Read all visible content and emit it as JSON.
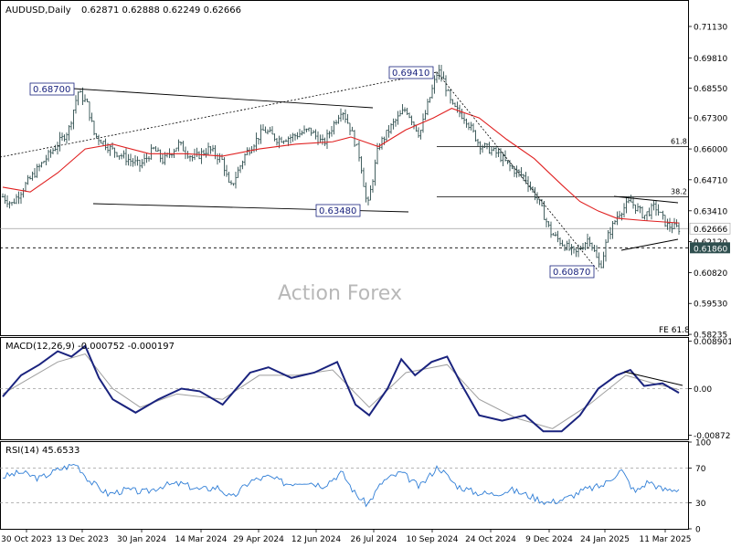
{
  "header": {
    "symbol": "AUDUSD,Daily",
    "ohlc": "0.62871 0.62888 0.62249 0.62666"
  },
  "watermark": "Action Forex",
  "colors": {
    "bars": "#2f4f4f",
    "ma": "#e02020",
    "macd": "#1a237e",
    "macd_signal": "#9e9e9e",
    "rsi": "#2e7dd6",
    "trendline": "#000000",
    "label_border": "#1a237e",
    "current_price_bg": "#2f4f4f"
  },
  "chart_data": [
    {
      "type": "ohlc",
      "panel": "price",
      "ylim": [
        0.582,
        0.722
      ],
      "y_ticks": [
        "0.71130",
        "0.69810",
        "0.68550",
        "0.67300",
        "0.66000",
        "0.64710",
        "0.63410",
        "0.62120",
        "0.60820",
        "0.59530",
        "0.58235"
      ],
      "x_ticks": [
        "30 Oct 2023",
        "13 Dec 2023",
        "30 Jan 2024",
        "14 Mar 2024",
        "29 Apr 2024",
        "12 Jun 2024",
        "26 Jul 2024",
        "10 Sep 2024",
        "24 Oct 2024",
        "9 Dec 2024",
        "24 Jan 2025",
        "11 Mar 2025"
      ],
      "path_points": [
        [
          0,
          0.64
        ],
        [
          10,
          0.637
        ],
        [
          25,
          0.645
        ],
        [
          45,
          0.655
        ],
        [
          60,
          0.662
        ],
        [
          72,
          0.668
        ],
        [
          82,
          0.684
        ],
        [
          92,
          0.679
        ],
        [
          100,
          0.666
        ],
        [
          118,
          0.66
        ],
        [
          135,
          0.656
        ],
        [
          150,
          0.653
        ],
        [
          165,
          0.66
        ],
        [
          175,
          0.655
        ],
        [
          192,
          0.662
        ],
        [
          208,
          0.656
        ],
        [
          225,
          0.66
        ],
        [
          240,
          0.655
        ],
        [
          248,
          0.643
        ],
        [
          265,
          0.658
        ],
        [
          285,
          0.668
        ],
        [
          300,
          0.664
        ],
        [
          315,
          0.665
        ],
        [
          335,
          0.668
        ],
        [
          350,
          0.662
        ],
        [
          370,
          0.677
        ],
        [
          380,
          0.668
        ],
        [
          390,
          0.656
        ],
        [
          398,
          0.635
        ],
        [
          410,
          0.661
        ],
        [
          425,
          0.67
        ],
        [
          440,
          0.677
        ],
        [
          455,
          0.666
        ],
        [
          465,
          0.68
        ],
        [
          475,
          0.693
        ],
        [
          482,
          0.688
        ],
        [
          490,
          0.678
        ],
        [
          505,
          0.673
        ],
        [
          520,
          0.662
        ],
        [
          540,
          0.658
        ],
        [
          555,
          0.652
        ],
        [
          570,
          0.648
        ],
        [
          585,
          0.638
        ],
        [
          598,
          0.625
        ],
        [
          612,
          0.62
        ],
        [
          625,
          0.616
        ],
        [
          640,
          0.623
        ],
        [
          652,
          0.61
        ],
        [
          660,
          0.623
        ],
        [
          672,
          0.633
        ],
        [
          685,
          0.638
        ],
        [
          700,
          0.632
        ],
        [
          712,
          0.636
        ],
        [
          725,
          0.628
        ],
        [
          738,
          0.6267
        ]
      ],
      "ma_points": [
        [
          0,
          0.644
        ],
        [
          30,
          0.642
        ],
        [
          60,
          0.65
        ],
        [
          90,
          0.66
        ],
        [
          120,
          0.662
        ],
        [
          160,
          0.658
        ],
        [
          200,
          0.658
        ],
        [
          240,
          0.657
        ],
        [
          280,
          0.66
        ],
        [
          320,
          0.662
        ],
        [
          360,
          0.663
        ],
        [
          380,
          0.665
        ],
        [
          410,
          0.661
        ],
        [
          440,
          0.668
        ],
        [
          470,
          0.673
        ],
        [
          490,
          0.677
        ],
        [
          520,
          0.673
        ],
        [
          550,
          0.664
        ],
        [
          580,
          0.656
        ],
        [
          610,
          0.645
        ],
        [
          630,
          0.638
        ],
        [
          650,
          0.634
        ],
        [
          670,
          0.631
        ],
        [
          700,
          0.63
        ],
        [
          738,
          0.629
        ]
      ],
      "annotations": {
        "high_2023": "0.68700",
        "low_2024": "0.63480",
        "high_2024": "0.69410",
        "low_2025": "0.60870",
        "fib_61_8": "61.8",
        "fib_38_2": "38.2",
        "fe_61_8": "FE 61.8",
        "support_price": "0.61860",
        "current_price": "0.62666"
      },
      "levels": {
        "fib_61_8": 0.661,
        "fib_38_2": 0.64,
        "support": 0.6186,
        "current": 0.62666
      }
    },
    {
      "type": "line",
      "panel": "macd",
      "title": "MACD(12,26,9) -0.000752 -0.000197",
      "y_ticks": [
        "0.008901",
        "0.00",
        "-0.008729"
      ],
      "macd_points": [
        [
          0,
          -0.0015
        ],
        [
          20,
          0.0025
        ],
        [
          40,
          0.0045
        ],
        [
          60,
          0.007
        ],
        [
          75,
          0.006
        ],
        [
          90,
          0.008
        ],
        [
          105,
          0.002
        ],
        [
          120,
          -0.002
        ],
        [
          145,
          -0.0045
        ],
        [
          170,
          -0.002
        ],
        [
          195,
          0.0
        ],
        [
          215,
          -0.0005
        ],
        [
          240,
          -0.003
        ],
        [
          270,
          0.003
        ],
        [
          290,
          0.004
        ],
        [
          315,
          0.002
        ],
        [
          340,
          0.003
        ],
        [
          365,
          0.005
        ],
        [
          385,
          -0.003
        ],
        [
          400,
          -0.005
        ],
        [
          420,
          0.0
        ],
        [
          435,
          0.0055
        ],
        [
          450,
          0.0025
        ],
        [
          468,
          0.005
        ],
        [
          485,
          0.006
        ],
        [
          500,
          0.001
        ],
        [
          520,
          -0.005
        ],
        [
          545,
          -0.006
        ],
        [
          570,
          -0.005
        ],
        [
          590,
          -0.008
        ],
        [
          610,
          -0.008
        ],
        [
          630,
          -0.005
        ],
        [
          650,
          0.0
        ],
        [
          670,
          0.0025
        ],
        [
          685,
          0.0035
        ],
        [
          700,
          0.0005
        ],
        [
          720,
          0.001
        ],
        [
          738,
          -0.0008
        ]
      ],
      "signal_points": [
        [
          0,
          -0.001
        ],
        [
          30,
          0.002
        ],
        [
          60,
          0.005
        ],
        [
          90,
          0.0065
        ],
        [
          120,
          0.0
        ],
        [
          150,
          -0.0035
        ],
        [
          190,
          -0.001
        ],
        [
          240,
          -0.002
        ],
        [
          280,
          0.0025
        ],
        [
          320,
          0.0025
        ],
        [
          360,
          0.0035
        ],
        [
          400,
          -0.0035
        ],
        [
          440,
          0.003
        ],
        [
          485,
          0.0045
        ],
        [
          520,
          -0.002
        ],
        [
          560,
          -0.0055
        ],
        [
          600,
          -0.0075
        ],
        [
          640,
          -0.003
        ],
        [
          680,
          0.0025
        ],
        [
          710,
          0.001
        ],
        [
          738,
          -0.0002
        ]
      ],
      "ylim": [
        -0.0095,
        0.0095
      ]
    },
    {
      "type": "line",
      "panel": "rsi",
      "title": "RSI(14) 45.6533",
      "y_ticks": [
        "100",
        "70",
        "30",
        "0"
      ],
      "ylim": [
        0,
        100
      ],
      "rsi_points": [
        [
          0,
          60
        ],
        [
          20,
          65
        ],
        [
          40,
          58
        ],
        [
          60,
          68
        ],
        [
          80,
          75
        ],
        [
          95,
          55
        ],
        [
          115,
          40
        ],
        [
          135,
          45
        ],
        [
          155,
          42
        ],
        [
          175,
          50
        ],
        [
          195,
          52
        ],
        [
          215,
          45
        ],
        [
          235,
          48
        ],
        [
          250,
          35
        ],
        [
          270,
          55
        ],
        [
          290,
          60
        ],
        [
          310,
          52
        ],
        [
          330,
          55
        ],
        [
          350,
          50
        ],
        [
          370,
          65
        ],
        [
          385,
          40
        ],
        [
          398,
          28
        ],
        [
          415,
          55
        ],
        [
          435,
          65
        ],
        [
          455,
          48
        ],
        [
          475,
          72
        ],
        [
          495,
          50
        ],
        [
          515,
          42
        ],
        [
          535,
          40
        ],
        [
          555,
          45
        ],
        [
          575,
          38
        ],
        [
          595,
          30
        ],
        [
          615,
          35
        ],
        [
          635,
          45
        ],
        [
          655,
          50
        ],
        [
          675,
          68
        ],
        [
          690,
          42
        ],
        [
          705,
          55
        ],
        [
          720,
          45
        ],
        [
          738,
          46
        ]
      ]
    }
  ]
}
